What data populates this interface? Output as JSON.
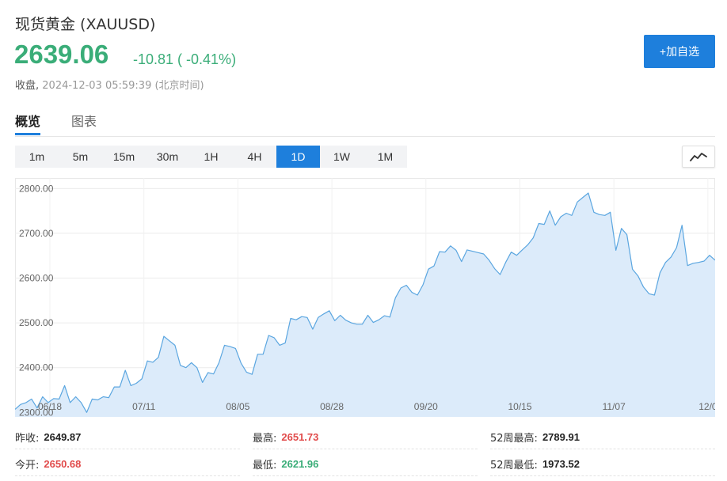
{
  "header": {
    "title": "现货黄金  (XAUUSD)",
    "price": "2639.06",
    "change": "-10.81 ( -0.41%)",
    "status_label": "收盘,",
    "timestamp": "2024-12-03 05:59:39 (北京时间)",
    "add_button": "+加自选"
  },
  "tabs": [
    "概览",
    "图表"
  ],
  "periods": [
    "1m",
    "5m",
    "15m",
    "30m",
    "1H",
    "4H",
    "1D",
    "1W",
    "1M"
  ],
  "active_period": "1D",
  "chart_type_icon": "line-chart-icon",
  "colors": {
    "up": "#e14b4b",
    "down": "#3aad78",
    "accent": "#1e7fdc",
    "line": "#5ba6e0",
    "fill": "#dcebfa"
  },
  "chart_data": {
    "type": "area",
    "x_tick_labels": [
      "06/18",
      "07/11",
      "08/05",
      "08/28",
      "09/20",
      "10/15",
      "11/07",
      "12/0"
    ],
    "y_tick_labels": [
      "2300.00",
      "2400.00",
      "2500.00",
      "2600.00",
      "2700.00",
      "2800.00"
    ],
    "ylim": [
      2290,
      2820
    ],
    "grid": true,
    "series": [
      {
        "values": [
          2307,
          2318,
          2322,
          2330,
          2310,
          2335,
          2322,
          2331,
          2330,
          2360,
          2322,
          2335,
          2322,
          2300,
          2330,
          2328,
          2335,
          2333,
          2357,
          2357,
          2394,
          2360,
          2365,
          2375,
          2415,
          2412,
          2423,
          2470,
          2460,
          2450,
          2405,
          2400,
          2411,
          2400,
          2367,
          2389,
          2386,
          2411,
          2450,
          2447,
          2443,
          2410,
          2390,
          2385,
          2430,
          2430,
          2472,
          2467,
          2450,
          2455,
          2510,
          2507,
          2514,
          2512,
          2486,
          2512,
          2520,
          2527,
          2505,
          2517,
          2506,
          2500,
          2497,
          2497,
          2517,
          2501,
          2507,
          2516,
          2513,
          2556,
          2578,
          2584,
          2568,
          2562,
          2585,
          2620,
          2627,
          2659,
          2658,
          2672,
          2662,
          2637,
          2663,
          2660,
          2657,
          2654,
          2640,
          2621,
          2608,
          2635,
          2658,
          2651,
          2663,
          2674,
          2690,
          2722,
          2720,
          2750,
          2718,
          2737,
          2745,
          2740,
          2770,
          2780,
          2790,
          2747,
          2742,
          2740,
          2747,
          2662,
          2711,
          2697,
          2620,
          2605,
          2580,
          2565,
          2562,
          2612,
          2635,
          2647,
          2668,
          2718,
          2628,
          2633,
          2635,
          2638,
          2651,
          2640
        ]
      }
    ]
  },
  "stats": [
    {
      "label": "昨收:",
      "value": "2649.87",
      "tone": "neutral"
    },
    {
      "label": "最高:",
      "value": "2651.73",
      "tone": "up"
    },
    {
      "label": "52周最高:",
      "value": "2789.91",
      "tone": "neutral"
    },
    {
      "label": "今开:",
      "value": "2650.68",
      "tone": "up"
    },
    {
      "label": "最低:",
      "value": "2621.96",
      "tone": "down"
    },
    {
      "label": "52周最低:",
      "value": "1973.52",
      "tone": "neutral"
    }
  ]
}
